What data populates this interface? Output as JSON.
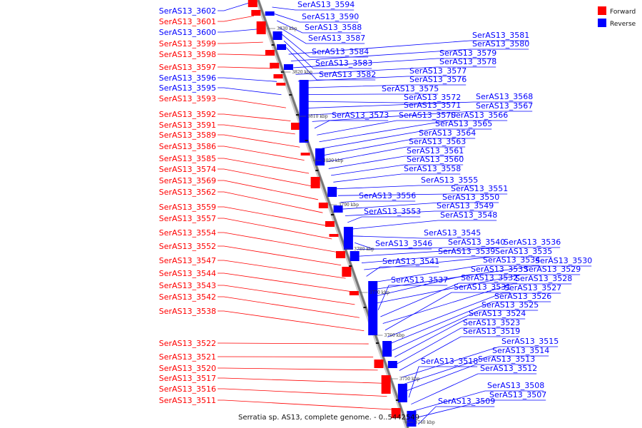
{
  "caption": "Serratia sp. AS13, complete genome. - 0..5442549",
  "legend": {
    "forward": "Forward",
    "reverse": "Reverse"
  },
  "colors": {
    "forward": "#ff0000",
    "reverse": "#0000ff",
    "axis": "#777777",
    "background": "#ffffff"
  },
  "ticks": [
    "3830 kbp",
    "3820 kbp",
    "3810 kbp",
    "3800 kbp",
    "3790 kbp",
    "3780 kbp",
    "3770 kbp",
    "3760 kbp",
    "3750 kbp",
    "3740 kbp"
  ],
  "left_labels": [
    {
      "text": "SerAS13_3602",
      "strand": "reverse"
    },
    {
      "text": "SerAS13_3601",
      "strand": "forward"
    },
    {
      "text": "SerAS13_3600",
      "strand": "reverse"
    },
    {
      "text": "SerAS13_3599",
      "strand": "forward"
    },
    {
      "text": "SerAS13_3598",
      "strand": "forward"
    },
    {
      "text": "SerAS13_3597",
      "strand": "forward"
    },
    {
      "text": "SerAS13_3596",
      "strand": "reverse"
    },
    {
      "text": "SerAS13_3595",
      "strand": "reverse"
    },
    {
      "text": "SerAS13_3593",
      "strand": "forward"
    },
    {
      "text": "SerAS13_3592",
      "strand": "forward"
    },
    {
      "text": "SerAS13_3591",
      "strand": "forward"
    },
    {
      "text": "SerAS13_3589",
      "strand": "forward"
    },
    {
      "text": "SerAS13_3586",
      "strand": "forward"
    },
    {
      "text": "SerAS13_3585",
      "strand": "forward"
    },
    {
      "text": "SerAS13_3574",
      "strand": "forward"
    },
    {
      "text": "SerAS13_3569",
      "strand": "forward"
    },
    {
      "text": "SerAS13_3562",
      "strand": "forward"
    },
    {
      "text": "SerAS13_3559",
      "strand": "forward"
    },
    {
      "text": "SerAS13_3557",
      "strand": "forward"
    },
    {
      "text": "SerAS13_3554",
      "strand": "forward"
    },
    {
      "text": "SerAS13_3552",
      "strand": "forward"
    },
    {
      "text": "SerAS13_3547",
      "strand": "forward"
    },
    {
      "text": "SerAS13_3544",
      "strand": "forward"
    },
    {
      "text": "SerAS13_3543",
      "strand": "forward"
    },
    {
      "text": "SerAS13_3542",
      "strand": "forward"
    },
    {
      "text": "SerAS13_3538",
      "strand": "forward"
    },
    {
      "text": "SerAS13_3522",
      "strand": "forward"
    },
    {
      "text": "SerAS13_3521",
      "strand": "forward"
    },
    {
      "text": "SerAS13_3520",
      "strand": "forward"
    },
    {
      "text": "SerAS13_3517",
      "strand": "forward"
    },
    {
      "text": "SerAS13_3516",
      "strand": "forward"
    },
    {
      "text": "SerAS13_3511",
      "strand": "forward"
    }
  ],
  "right_labels": [
    {
      "text": "SerAS13_3594",
      "strand": "reverse"
    },
    {
      "text": "SerAS13_3590",
      "strand": "reverse"
    },
    {
      "text": "SerAS13_3588",
      "strand": "reverse"
    },
    {
      "text": "SerAS13_3587",
      "strand": "reverse"
    },
    {
      "text": "SerAS13_3584",
      "strand": "reverse"
    },
    {
      "text": "SerAS13_3583",
      "strand": "reverse"
    },
    {
      "text": "SerAS13_3582",
      "strand": "reverse"
    },
    {
      "text": "SerAS13_3581",
      "strand": "reverse"
    },
    {
      "text": "SerAS13_3580",
      "strand": "reverse"
    },
    {
      "text": "SerAS13_3579",
      "strand": "reverse"
    },
    {
      "text": "SerAS13_3578",
      "strand": "reverse"
    },
    {
      "text": "SerAS13_3577",
      "strand": "reverse"
    },
    {
      "text": "SerAS13_3576",
      "strand": "reverse"
    },
    {
      "text": "SerAS13_3575",
      "strand": "reverse"
    },
    {
      "text": "SerAS13_3572",
      "strand": "reverse"
    },
    {
      "text": "SerAS13_3568",
      "strand": "reverse"
    },
    {
      "text": "SerAS13_3571",
      "strand": "reverse"
    },
    {
      "text": "SerAS13_3567",
      "strand": "reverse"
    },
    {
      "text": "SerAS13_3573",
      "strand": "reverse"
    },
    {
      "text": "SerAS13_3570",
      "strand": "reverse"
    },
    {
      "text": "SerAS13_3566",
      "strand": "reverse"
    },
    {
      "text": "SerAS13_3565",
      "strand": "reverse"
    },
    {
      "text": "SerAS13_3564",
      "strand": "reverse"
    },
    {
      "text": "SerAS13_3563",
      "strand": "reverse"
    },
    {
      "text": "SerAS13_3561",
      "strand": "reverse"
    },
    {
      "text": "SerAS13_3560",
      "strand": "reverse"
    },
    {
      "text": "SerAS13_3558",
      "strand": "reverse"
    },
    {
      "text": "SerAS13_3555",
      "strand": "reverse"
    },
    {
      "text": "SerAS13_3551",
      "strand": "reverse"
    },
    {
      "text": "SerAS13_3556",
      "strand": "reverse"
    },
    {
      "text": "SerAS13_3550",
      "strand": "reverse"
    },
    {
      "text": "SerAS13_3549",
      "strand": "reverse"
    },
    {
      "text": "SerAS13_3553",
      "strand": "reverse"
    },
    {
      "text": "SerAS13_3548",
      "strand": "reverse"
    },
    {
      "text": "SerAS13_3545",
      "strand": "reverse"
    },
    {
      "text": "SerAS13_3546",
      "strand": "reverse"
    },
    {
      "text": "SerAS13_3540",
      "strand": "reverse"
    },
    {
      "text": "SerAS13_3536",
      "strand": "reverse"
    },
    {
      "text": "SerAS13_3539",
      "strand": "reverse"
    },
    {
      "text": "SerAS13_3535",
      "strand": "reverse"
    },
    {
      "text": "SerAS13_3541",
      "strand": "reverse"
    },
    {
      "text": "SerAS13_3534",
      "strand": "reverse"
    },
    {
      "text": "SerAS13_3530",
      "strand": "reverse"
    },
    {
      "text": "SerAS13_3533",
      "strand": "reverse"
    },
    {
      "text": "SerAS13_3529",
      "strand": "reverse"
    },
    {
      "text": "SerAS13_3537",
      "strand": "reverse"
    },
    {
      "text": "SerAS13_3532",
      "strand": "reverse"
    },
    {
      "text": "SerAS13_3528",
      "strand": "reverse"
    },
    {
      "text": "SerAS13_3531",
      "strand": "reverse"
    },
    {
      "text": "SerAS13_3527",
      "strand": "reverse"
    },
    {
      "text": "SerAS13_3526",
      "strand": "reverse"
    },
    {
      "text": "SerAS13_3525",
      "strand": "reverse"
    },
    {
      "text": "SerAS13_3524",
      "strand": "reverse"
    },
    {
      "text": "SerAS13_3523",
      "strand": "reverse"
    },
    {
      "text": "SerAS13_3519",
      "strand": "reverse"
    },
    {
      "text": "SerAS13_3515",
      "strand": "reverse"
    },
    {
      "text": "SerAS13_3514",
      "strand": "reverse"
    },
    {
      "text": "SerAS13_3513",
      "strand": "reverse"
    },
    {
      "text": "SerAS13_3518",
      "strand": "reverse"
    },
    {
      "text": "SerAS13_3512",
      "strand": "reverse"
    },
    {
      "text": "SerAS13_3508",
      "strand": "reverse"
    },
    {
      "text": "SerAS13_3507",
      "strand": "reverse"
    },
    {
      "text": "SerAS13_3509",
      "strand": "reverse"
    }
  ]
}
